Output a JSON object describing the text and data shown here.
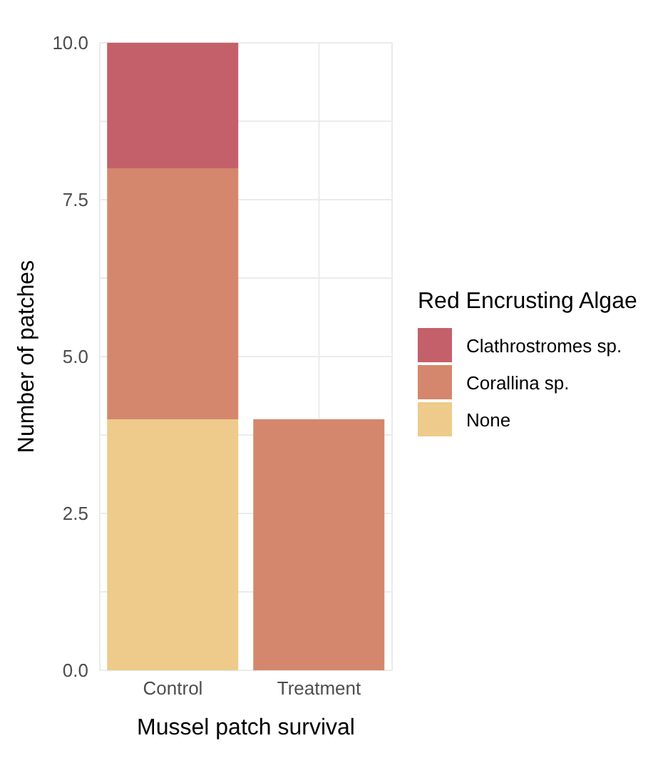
{
  "chart_data": {
    "type": "bar",
    "stacked": true,
    "xlabel": "Mussel patch survival",
    "ylabel": "Number of patches",
    "legend_title": "Red Encrusting Algae",
    "legend": "right",
    "grid": true,
    "categories": [
      "Control",
      "Treatment"
    ],
    "series": [
      {
        "name": "None",
        "color": "#eecb8a",
        "values": [
          4,
          0
        ]
      },
      {
        "name": "Corallina sp.",
        "color": "#d4876d",
        "values": [
          4,
          4
        ]
      },
      {
        "name": "Clathrostromes sp.",
        "color": "#c4606a",
        "values": [
          2,
          0
        ]
      }
    ],
    "ylim": [
      0,
      10
    ],
    "yticks": [
      {
        "value": 0,
        "label": "0.0"
      },
      {
        "value": 1.25,
        "label": null
      },
      {
        "value": 2.5,
        "label": "2.5"
      },
      {
        "value": 3.75,
        "label": null
      },
      {
        "value": 5,
        "label": "5.0"
      },
      {
        "value": 6.25,
        "label": null
      },
      {
        "value": 7.5,
        "label": "7.5"
      },
      {
        "value": 8.75,
        "label": null
      },
      {
        "value": 10,
        "label": "10.0"
      }
    ]
  }
}
